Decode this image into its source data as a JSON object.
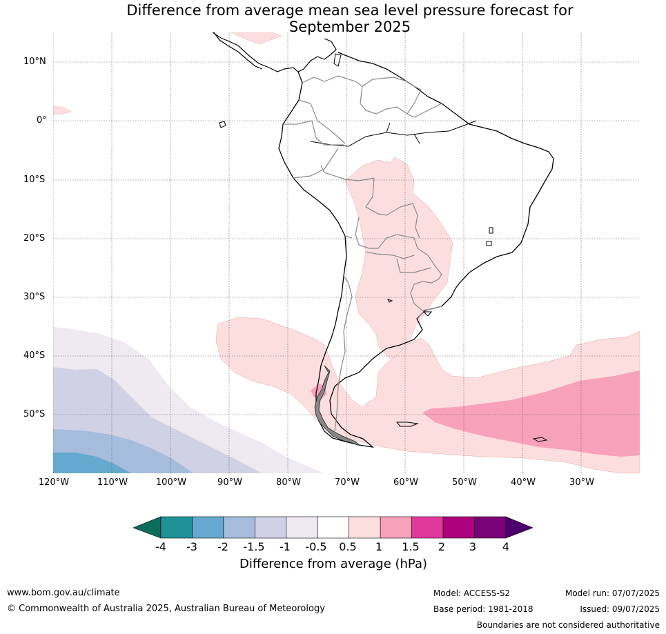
{
  "title_line1": "Difference from average mean sea level pressure forecast for",
  "title_line2": "September 2025",
  "lat_labels": [
    "10°N",
    "0°",
    "10°S",
    "20°S",
    "30°S",
    "40°S",
    "50°S"
  ],
  "lon_labels": [
    "120°W",
    "110°W",
    "100°W",
    "90°W",
    "80°W",
    "70°W",
    "60°W",
    "50°W",
    "40°W",
    "30°W"
  ],
  "colorbar": {
    "ticks": [
      "-4",
      "-3",
      "-2",
      "-1.5",
      "-1",
      "-0.5",
      "0.5",
      "1",
      "1.5",
      "2",
      "3",
      "4"
    ],
    "colors": [
      "#1f9298",
      "#65a9d0",
      "#a6bcdc",
      "#d0d1e5",
      "#efe9f1",
      "#ffffff",
      "#fddede",
      "#f7a1bb",
      "#e0399c",
      "#ae017e",
      "#7a0177"
    ],
    "under_color": "#0c6d5b",
    "over_color": "#4b006e",
    "label": "Difference from average (hPa)"
  },
  "map_colors": {
    "pink_light": "#fddede",
    "pink_mid": "#f7a1bb",
    "lavender": "#efe9f1",
    "blue_lilac": "#d0d1e5",
    "blue_grey": "#a6bcdc",
    "blue": "#65a9d0"
  },
  "footer": {
    "website": "www.bom.gov.au/climate",
    "copyright": "© Commonwealth of Australia 2025, Australian Bureau of Meteorology",
    "model": "Model: ACCESS-S2",
    "base_period": "Base period: 1981-2018",
    "model_run": "Model run: 07/07/2025",
    "issued": "Issued: 09/07/2025",
    "disclaimer": "Boundaries are not considered authoritative"
  }
}
